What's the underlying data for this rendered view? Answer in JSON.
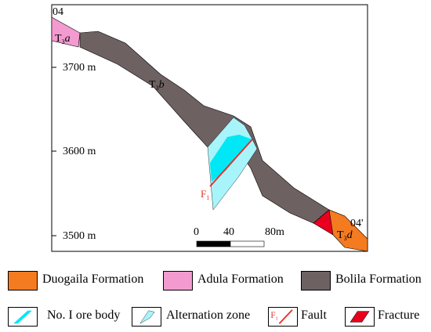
{
  "section": {
    "line_start": "04",
    "line_end": "04'",
    "elevation_labels": [
      "3700 m",
      "3600 m",
      "3500 m"
    ],
    "scale_bar": {
      "ticks": [
        "0",
        "40",
        "80m"
      ]
    },
    "formation_labels": {
      "adula": {
        "main": "T",
        "sub": "3",
        "italic": "a"
      },
      "bolila": {
        "main": "T",
        "sub": "3",
        "italic": "b"
      },
      "duogaila": {
        "main": "T",
        "sub": "3",
        "italic": "d"
      }
    },
    "fault_label": {
      "main": "F",
      "sub": "1"
    }
  },
  "legend": {
    "duogaila": "Duogaila Formation",
    "adula": "Adula Formation",
    "bolila": "Bolila Formation",
    "ore_body": "No. I ore body",
    "alternation": "Alternation zone",
    "fault": "Fault",
    "fault_symbol": {
      "main": "F",
      "sub": "1"
    },
    "fracture": "Fracture"
  },
  "colors": {
    "duogaila": "#f47b20",
    "adula": "#f39bd0",
    "bolila": "#6e6161",
    "ore_body": "#00e8f5",
    "alternation": "#a8f4fb",
    "fault": "#e8302a",
    "fracture": "#e8001e"
  }
}
